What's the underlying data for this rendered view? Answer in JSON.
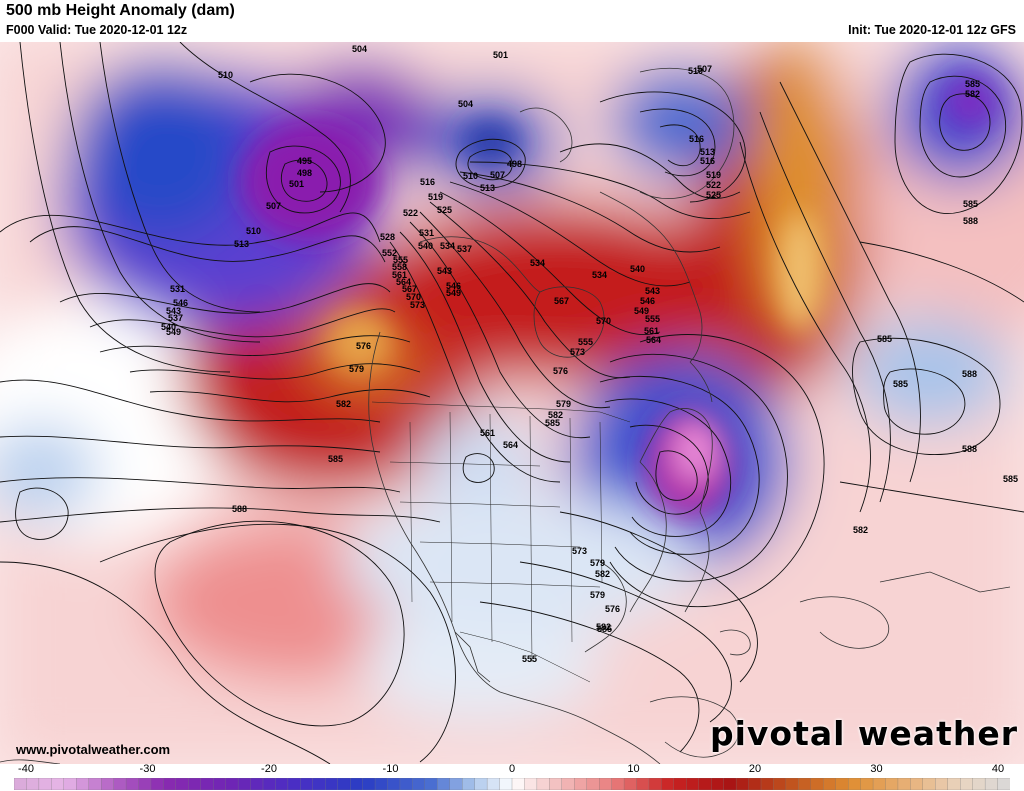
{
  "header": {
    "title": "500 mb Height Anomaly (dam)",
    "valid": "F000 Valid: Tue 2020-12-01 12z",
    "init": "Init: Tue 2020-12-01 12z GFS"
  },
  "footer": {
    "url": "www.pivotalweather.com",
    "brand": "pivotal weather"
  },
  "colorbar": {
    "ticks": [
      "-40",
      "-30",
      "-20",
      "-10",
      "0",
      "10",
      "20",
      "30",
      "40"
    ],
    "min": -40,
    "max": 40
  },
  "map": {
    "contour_labels": [
      "504",
      "510",
      "501",
      "504",
      "510",
      "507",
      "516",
      "513",
      "516",
      "519",
      "522",
      "525",
      "495",
      "498",
      "501",
      "507",
      "510",
      "513",
      "498",
      "507",
      "510",
      "513",
      "516",
      "519",
      "522",
      "525",
      "528",
      "531",
      "534",
      "537",
      "540",
      "543",
      "546",
      "549",
      "552",
      "555",
      "558",
      "561",
      "564",
      "567",
      "570",
      "573",
      "576",
      "579",
      "582",
      "585",
      "588",
      "531",
      "537",
      "540",
      "543",
      "546",
      "549",
      "555",
      "534",
      "534",
      "540",
      "543",
      "546",
      "549",
      "555",
      "561",
      "564",
      "567",
      "570",
      "573",
      "576",
      "579",
      "582",
      "585",
      "564",
      "561",
      "573",
      "579",
      "582",
      "579",
      "576",
      "582",
      "585",
      "582",
      "585",
      "588",
      "585",
      "588",
      "585",
      "588",
      "585",
      "582",
      "585",
      "555"
    ],
    "anomaly_centers": [
      {
        "name": "gulf-of-alaska-low",
        "value": -28
      },
      {
        "name": "hudson-bay-low",
        "value": -18
      },
      {
        "name": "baffin-low",
        "value": -15
      },
      {
        "name": "north-atlantic-low",
        "value": -22
      },
      {
        "name": "eastern-us-low",
        "value": -38
      },
      {
        "name": "east-pacific-low",
        "value": -10
      },
      {
        "name": "mid-atlantic-low",
        "value": -12
      },
      {
        "name": "pacific-northwest-high",
        "value": 26
      },
      {
        "name": "greenland-high",
        "value": 28
      },
      {
        "name": "central-canada-high",
        "value": 18
      },
      {
        "name": "subtropical-pacific-high",
        "value": 10
      }
    ]
  }
}
